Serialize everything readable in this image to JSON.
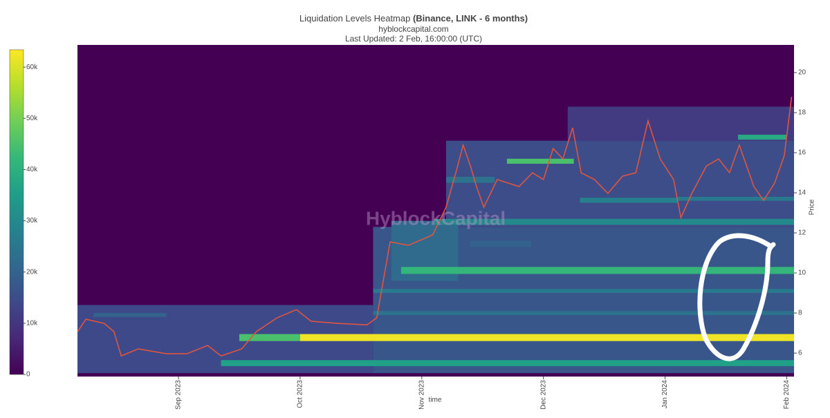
{
  "chart_data": {
    "type": "heatmap",
    "title": "Liquidation Levels Heatmap",
    "title_bold": "(Binance, LINK - 6 months)",
    "subtitle": "hyblockcapital.com",
    "updated": "Last Updated: 2 Feb, 16:00:00 (UTC)",
    "watermark": "HyblockCapital",
    "xlabel": "time",
    "ylabel": "Price",
    "xlim": [
      8.17,
      14.06
    ],
    "xticks": [
      {
        "value": 9,
        "label": "Sep 2023"
      },
      {
        "value": 10,
        "label": "Oct 2023"
      },
      {
        "value": 11,
        "label": "Nov 2023"
      },
      {
        "value": 12,
        "label": "Dec 2023"
      },
      {
        "value": 13,
        "label": "Jan 2024"
      },
      {
        "value": 14,
        "label": "Feb 2024"
      }
    ],
    "ylim": [
      4.83,
      21.38
    ],
    "yticks": [
      6,
      8,
      10,
      12,
      14,
      16,
      18,
      20
    ],
    "clim": [
      0,
      63400
    ],
    "cticks": [
      0,
      {
        "value": 10000,
        "label": "10k"
      },
      {
        "value": 20000,
        "label": "20k"
      },
      {
        "value": 30000,
        "label": "30k"
      },
      {
        "value": 40000,
        "label": "40k"
      },
      {
        "value": 50000,
        "label": "50k"
      },
      {
        "value": 60000,
        "label": "60k"
      }
    ],
    "colorscale": [
      "#440154",
      "#482878",
      "#3e4989",
      "#31688e",
      "#26828e",
      "#1f9e89",
      "#35b779",
      "#6ece58",
      "#b5de2b",
      "#fde725"
    ],
    "bands": [
      {
        "start": 8.17,
        "end": 10.6,
        "low": 5.0,
        "high": 8.4,
        "intensity": 14000
      },
      {
        "start": 10.6,
        "end": 14.06,
        "low": 5.0,
        "high": 12.3,
        "intensity": 17000
      },
      {
        "start": 11.2,
        "end": 14.06,
        "low": 12.3,
        "high": 16.6,
        "intensity": 15000
      },
      {
        "start": 12.2,
        "end": 14.06,
        "low": 16.6,
        "high": 18.3,
        "intensity": 11000
      },
      {
        "start": 10.75,
        "end": 11.3,
        "low": 9.6,
        "high": 12.6,
        "intensity": 22000
      },
      {
        "start": 9.35,
        "end": 14.06,
        "low": 5.35,
        "high": 5.65,
        "intensity": 36000
      },
      {
        "start": 9.5,
        "end": 10.0,
        "low": 6.6,
        "high": 6.95,
        "intensity": 45000
      },
      {
        "start": 10.0,
        "end": 14.06,
        "low": 6.6,
        "high": 6.95,
        "intensity": 62000
      },
      {
        "start": 10.83,
        "end": 14.06,
        "low": 9.95,
        "high": 10.3,
        "intensity": 42000
      },
      {
        "start": 10.6,
        "end": 14.06,
        "low": 7.9,
        "high": 8.1,
        "intensity": 24000
      },
      {
        "start": 10.6,
        "end": 14.06,
        "low": 9.0,
        "high": 9.2,
        "intensity": 26000
      },
      {
        "start": 11.1,
        "end": 14.06,
        "low": 12.4,
        "high": 12.7,
        "intensity": 30000
      },
      {
        "start": 11.7,
        "end": 12.25,
        "low": 15.45,
        "high": 15.7,
        "intensity": 45000
      },
      {
        "start": 13.6,
        "end": 14.0,
        "low": 16.65,
        "high": 16.9,
        "intensity": 38000
      },
      {
        "start": 12.3,
        "end": 13.1,
        "low": 13.5,
        "high": 13.75,
        "intensity": 28000
      },
      {
        "start": 13.1,
        "end": 14.06,
        "low": 13.6,
        "high": 13.8,
        "intensity": 26000
      },
      {
        "start": 8.3,
        "end": 8.9,
        "low": 7.8,
        "high": 8.0,
        "intensity": 20000
      },
      {
        "start": 11.4,
        "end": 11.9,
        "low": 11.3,
        "high": 11.6,
        "intensity": 20000
      },
      {
        "start": 11.2,
        "end": 11.6,
        "low": 14.5,
        "high": 14.8,
        "intensity": 24000
      }
    ],
    "price": {
      "color": "#e0553f",
      "x": [
        8.17,
        8.24,
        8.39,
        8.47,
        8.53,
        8.67,
        8.9,
        9.07,
        9.24,
        9.35,
        9.52,
        9.64,
        9.81,
        9.97,
        10.09,
        10.32,
        10.55,
        10.63,
        10.69,
        10.74,
        10.89,
        11.09,
        11.2,
        11.28,
        11.34,
        11.4,
        11.45,
        11.51,
        11.62,
        11.8,
        11.91,
        12.0,
        12.08,
        12.16,
        12.24,
        12.31,
        12.42,
        12.53,
        12.65,
        12.76,
        12.86,
        12.96,
        13.07,
        13.13,
        13.22,
        13.34,
        13.44,
        13.53,
        13.61,
        13.73,
        13.81,
        13.9,
        13.98,
        14.04
      ],
      "values": [
        7.07,
        7.69,
        7.48,
        7.07,
        5.86,
        6.21,
        5.97,
        5.97,
        6.38,
        5.86,
        6.21,
        7.07,
        7.76,
        8.17,
        7.59,
        7.48,
        7.41,
        7.76,
        9.83,
        11.55,
        11.38,
        11.9,
        13.28,
        15.0,
        16.38,
        15.34,
        14.31,
        13.28,
        14.66,
        14.31,
        15.0,
        14.66,
        16.21,
        15.69,
        17.24,
        15.0,
        14.66,
        13.97,
        14.83,
        15.0,
        17.59,
        15.69,
        14.66,
        12.76,
        13.97,
        15.34,
        15.69,
        15.0,
        16.38,
        14.31,
        13.62,
        14.48,
        15.86,
        18.79
      ]
    }
  }
}
